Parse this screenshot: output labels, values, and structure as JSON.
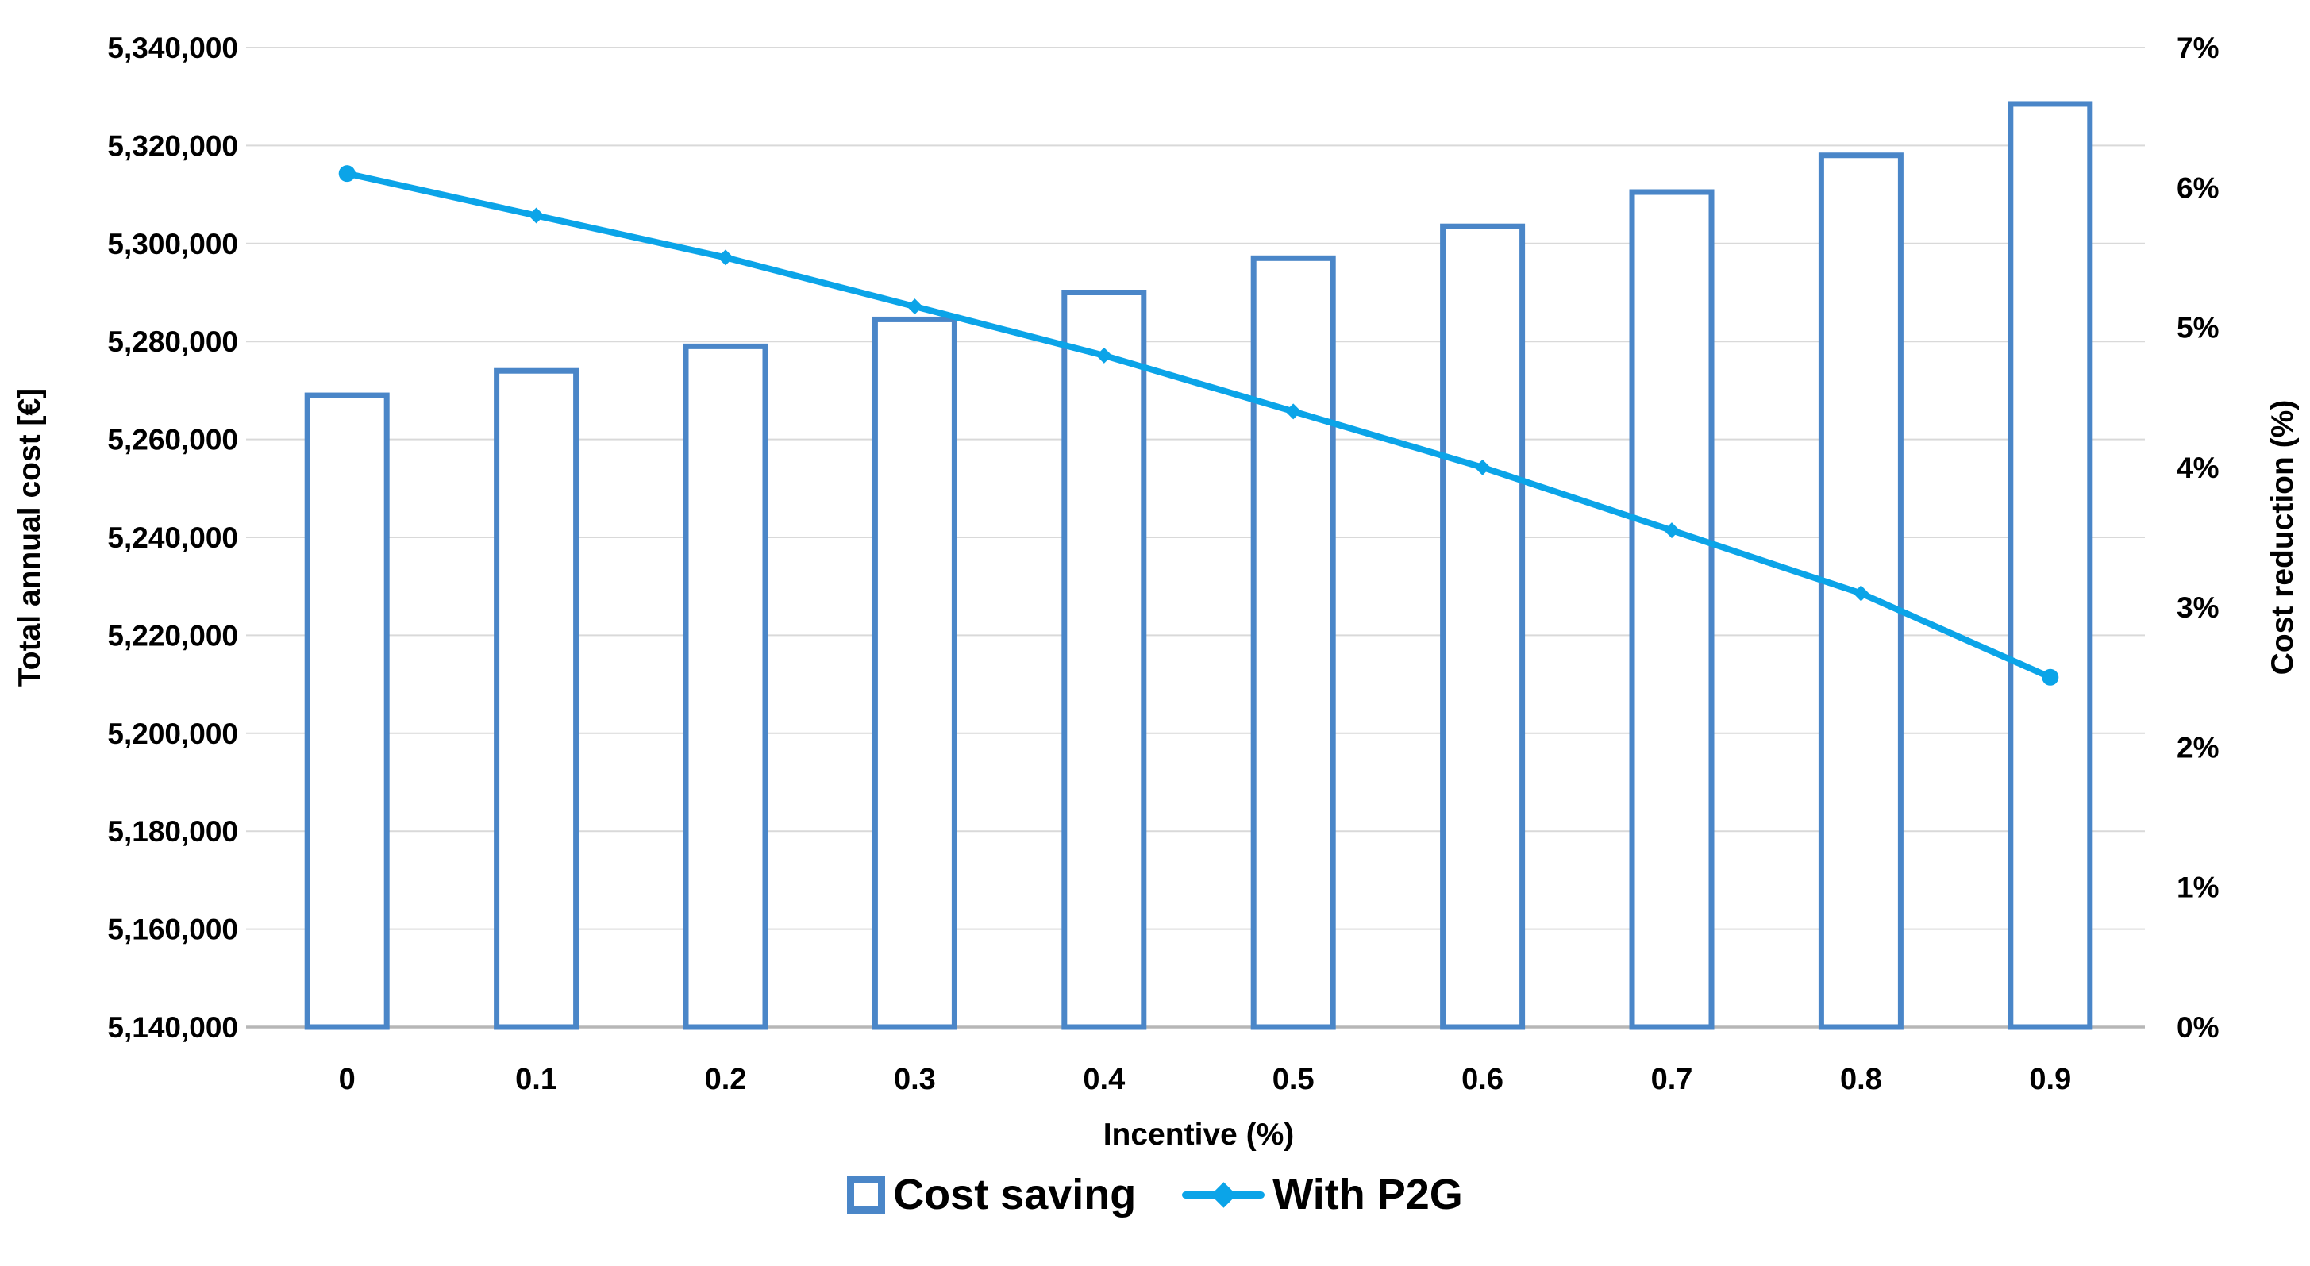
{
  "chart_data": {
    "type": "bar",
    "subtype": "combo-bar-line-dual-axis",
    "categories": [
      "0",
      "0.1",
      "0.2",
      "0.3",
      "0.4",
      "0.5",
      "0.6",
      "0.7",
      "0.8",
      "0.9"
    ],
    "series": [
      {
        "name": "Cost saving",
        "type": "bar",
        "axis": "left",
        "values": [
          5269000,
          5274000,
          5279000,
          5284500,
          5290000,
          5297000,
          5303500,
          5310500,
          5318000,
          5328500
        ]
      },
      {
        "name": "With P2G",
        "type": "line",
        "axis": "right",
        "values": [
          6.1,
          5.8,
          5.5,
          5.15,
          4.8,
          4.4,
          4.0,
          3.55,
          3.1,
          2.5
        ]
      }
    ],
    "title": "",
    "xlabel": "Incentive (%)",
    "left_axis": {
      "title": "Total annual cost [€]",
      "min": 5140000,
      "max": 5340000,
      "step": 20000,
      "tick_labels": [
        "5,140,000",
        "5,160,000",
        "5,180,000",
        "5,200,000",
        "5,220,000",
        "5,240,000",
        "5,260,000",
        "5,280,000",
        "5,300,000",
        "5,320,000",
        "5,340,000"
      ]
    },
    "right_axis": {
      "title": "Cost reduction (%)",
      "min": 0,
      "max": 7,
      "step": 1,
      "tick_labels": [
        "0%",
        "1%",
        "2%",
        "3%",
        "4%",
        "5%",
        "6%",
        "7%"
      ]
    },
    "grid": true,
    "legend_position": "bottom",
    "legend": [
      {
        "label": "Cost saving",
        "marker": "outlined-square"
      },
      {
        "label": "With P2G",
        "marker": "line-with-diamond"
      }
    ],
    "colors": {
      "bar_border": "#4a86c8",
      "bar_fill": "#ffffff",
      "line": "#0ba4e8",
      "gridline": "#d9d9d9",
      "axis_line": "#b7b7b7",
      "text": "#000000",
      "background": "#ffffff"
    }
  }
}
